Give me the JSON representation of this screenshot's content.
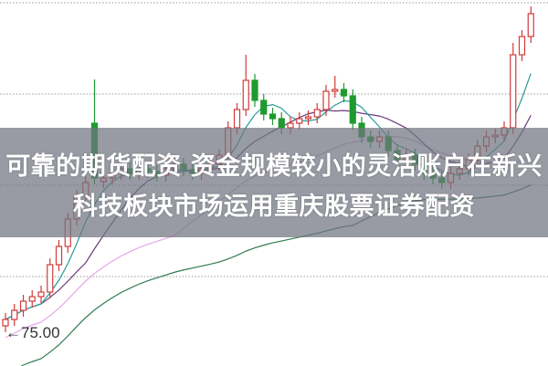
{
  "headline": {
    "line1": "可靠的期货配资 资金规模较小的灵活账户在新兴",
    "line2": "科技板块市场运用重庆股票证券配资"
  },
  "chart_data": {
    "type": "candlestick",
    "title": "",
    "price_marker": "75.00",
    "up_color": "#d23a3a",
    "down_color": "#1f9a2e",
    "ma_colors": {
      "ma5": "#2a9a9a",
      "ma10": "#6b3d7d",
      "ma20": "#e6a6e6",
      "ma60": "#2f7a4f"
    },
    "grid": "dotted-horizontal",
    "open": [
      76.0,
      76.7,
      77.7,
      78.7,
      79.2,
      79.7,
      82.7,
      84.7,
      87.7,
      90.2,
      98.2,
      91.8,
      92.2,
      92.7,
      93.2,
      92.7,
      93.2,
      92.9,
      92.5,
      93.2,
      93.7,
      93.1,
      92.7,
      93.2,
      93.7,
      94.7,
      97.7,
      99.7,
      102.9,
      100.7,
      99.2,
      98.7,
      97.7,
      98.2,
      98.7,
      98.9,
      99.7,
      101.7,
      101.9,
      101.2,
      98.2,
      96.7,
      96.2,
      96.7,
      95.2,
      94.2,
      94.7,
      93.7,
      92.7,
      92.2,
      91.7,
      92.7,
      93.2,
      94.2,
      95.7,
      96.7,
      96.9,
      97.7,
      105.7,
      107.7
    ],
    "high": [
      77.4,
      78.4,
      79.4,
      79.9,
      80.4,
      83.4,
      85.4,
      88.4,
      90.9,
      92.4,
      103.0,
      92.9,
      93.4,
      93.9,
      93.9,
      93.9,
      93.9,
      93.6,
      93.9,
      94.4,
      94.4,
      93.8,
      93.9,
      94.4,
      95.4,
      98.4,
      100.4,
      105.7,
      103.6,
      101.4,
      99.9,
      99.4,
      98.9,
      99.4,
      99.6,
      100.4,
      102.4,
      103.4,
      102.6,
      101.9,
      98.9,
      97.4,
      97.4,
      97.4,
      95.9,
      95.4,
      95.4,
      94.4,
      93.4,
      92.9,
      93.4,
      93.9,
      94.9,
      96.4,
      97.4,
      97.6,
      98.4,
      107.0,
      108.4,
      111.0
    ],
    "low": [
      75.3,
      76.0,
      77.0,
      78.0,
      78.5,
      79.0,
      82.0,
      84.0,
      87.0,
      89.5,
      91.5,
      91.1,
      91.5,
      92.0,
      92.0,
      92.0,
      92.2,
      91.8,
      91.8,
      92.5,
      92.4,
      92.0,
      92.0,
      92.5,
      93.0,
      94.0,
      97.0,
      99.0,
      100.0,
      98.5,
      98.0,
      97.0,
      97.0,
      97.5,
      98.0,
      98.2,
      99.0,
      101.0,
      100.5,
      97.5,
      96.0,
      95.5,
      95.5,
      94.5,
      93.5,
      93.5,
      93.0,
      92.0,
      91.5,
      91.0,
      91.0,
      92.0,
      92.5,
      93.5,
      95.0,
      96.0,
      96.2,
      97.0,
      105.0,
      107.0
    ],
    "close": [
      76.7,
      77.7,
      78.7,
      79.2,
      79.7,
      82.7,
      84.7,
      87.7,
      90.2,
      91.7,
      92.2,
      92.2,
      92.7,
      93.2,
      92.7,
      93.2,
      92.9,
      92.5,
      93.2,
      93.7,
      93.1,
      92.7,
      93.2,
      93.7,
      94.7,
      97.7,
      99.7,
      102.9,
      100.7,
      99.2,
      98.7,
      97.7,
      98.2,
      98.7,
      98.9,
      99.7,
      101.7,
      101.9,
      101.2,
      98.2,
      96.7,
      96.2,
      96.7,
      95.2,
      94.2,
      94.7,
      93.7,
      92.7,
      92.2,
      91.7,
      92.7,
      93.2,
      94.2,
      95.7,
      96.7,
      96.9,
      97.7,
      105.7,
      107.7,
      110.2
    ]
  }
}
